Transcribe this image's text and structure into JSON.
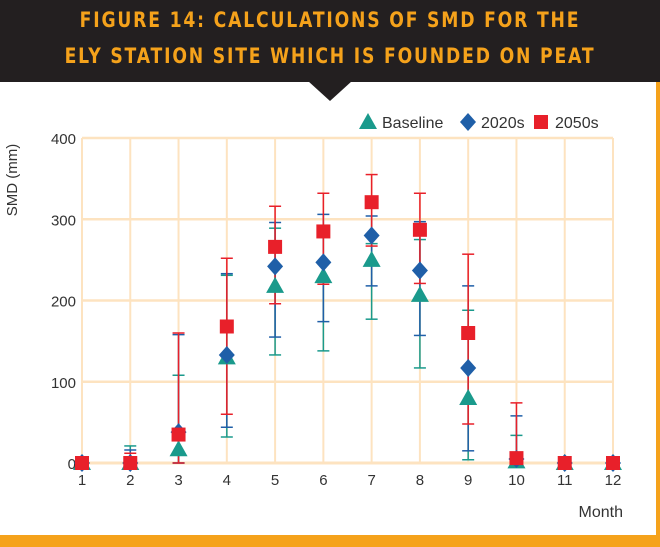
{
  "chart_data": {
    "type": "scatter",
    "title": "FIGURE 14: CALCULATIONS OF SMD FOR THE ELY STATION SITE WHICH IS FOUNDED ON PEAT",
    "title_lines": [
      "FIGURE 14: CALCULATIONS OF SMD FOR THE",
      "ELY STATION SITE WHICH IS FOUNDED ON PEAT"
    ],
    "xlabel": "Month",
    "ylabel": "SMD (mm)",
    "x": [
      1,
      2,
      3,
      4,
      5,
      6,
      7,
      8,
      9,
      10,
      11,
      12
    ],
    "xticks": [
      "1",
      "2",
      "3",
      "4",
      "5",
      "6",
      "7",
      "8",
      "9",
      "10",
      "11",
      "12"
    ],
    "yticks": [
      "0",
      "100",
      "200",
      "300",
      "400"
    ],
    "ylim": [
      0,
      400
    ],
    "grid": true,
    "legend": "top-right",
    "series": [
      {
        "name": "Baseline",
        "marker": "triangle",
        "color": "#1a9a8c",
        "values": [
          0,
          0,
          17,
          130,
          218,
          230,
          250,
          207,
          80,
          2,
          0,
          0
        ],
        "err_low": [
          0,
          0,
          0,
          32,
          133,
          138,
          177,
          117,
          4,
          0,
          0,
          0
        ],
        "err_high": [
          0,
          21,
          108,
          231,
          289,
          225,
          270,
          275,
          188,
          34,
          0,
          0
        ]
      },
      {
        "name": "2020s",
        "marker": "diamond",
        "color": "#1f5fa8",
        "values": [
          0,
          0,
          38,
          133,
          242,
          247,
          280,
          237,
          117,
          5,
          0,
          0
        ],
        "err_low": [
          0,
          0,
          0,
          44,
          155,
          174,
          218,
          157,
          15,
          0,
          0,
          0
        ],
        "err_high": [
          0,
          16,
          158,
          233,
          296,
          306,
          304,
          297,
          218,
          58,
          0,
          0
        ]
      },
      {
        "name": "2050s",
        "marker": "square",
        "color": "#e8202a",
        "values": [
          0,
          0,
          35,
          168,
          266,
          285,
          321,
          287,
          160,
          6,
          0,
          0
        ],
        "err_low": [
          0,
          0,
          0,
          60,
          196,
          220,
          267,
          221,
          48,
          0,
          0,
          0
        ],
        "err_high": [
          0,
          12,
          160,
          252,
          316,
          332,
          355,
          332,
          257,
          74,
          0,
          0
        ]
      }
    ]
  },
  "colors": {
    "banner": "#231f20",
    "accent": "#f5a21b",
    "grid": "#fde3c0"
  }
}
